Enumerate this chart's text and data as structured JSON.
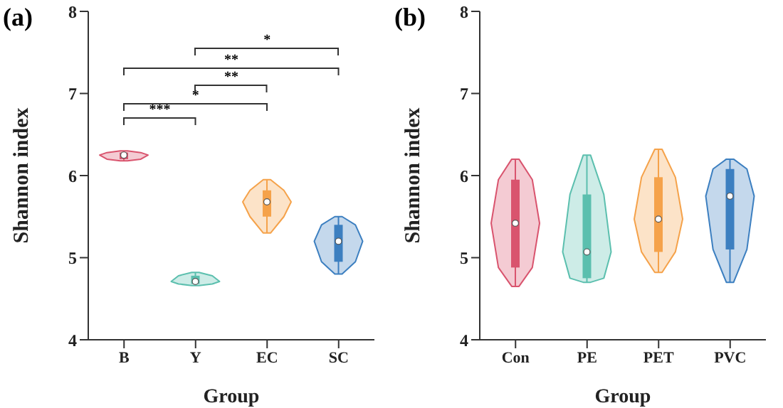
{
  "chart_data": [
    {
      "type": "box",
      "title": "(a)",
      "xlabel": "Group",
      "ylabel": "Shannon index",
      "categories": [
        "B",
        "Y",
        "EC",
        "SC"
      ],
      "boxes": [
        {
          "low": 6.18,
          "q1": 6.2,
          "median": 6.25,
          "q3": 6.28,
          "high": 6.3
        },
        {
          "low": 4.66,
          "q1": 4.68,
          "median": 4.71,
          "q3": 4.78,
          "high": 4.82
        },
        {
          "low": 5.3,
          "q1": 5.5,
          "median": 5.68,
          "q3": 5.82,
          "high": 5.95
        },
        {
          "low": 4.8,
          "q1": 4.95,
          "median": 5.2,
          "q3": 5.4,
          "high": 5.5
        }
      ],
      "colors": [
        "#d9546e",
        "#5bbfae",
        "#f5a24a",
        "#3c7fc0"
      ],
      "ylim": [
        4,
        8
      ],
      "yticks": [
        4,
        5,
        6,
        7,
        8
      ],
      "grid": false,
      "annotations": [
        "***",
        "*",
        "**",
        "**",
        "*"
      ]
    },
    {
      "type": "box",
      "title": "(b)",
      "xlabel": "Group",
      "ylabel": "Shannon index",
      "categories": [
        "Con",
        "PE",
        "PET",
        "PVC"
      ],
      "boxes": [
        {
          "low": 4.65,
          "q1": 4.88,
          "median": 5.42,
          "q3": 5.95,
          "high": 6.2
        },
        {
          "low": 4.7,
          "q1": 4.75,
          "median": 5.07,
          "q3": 5.77,
          "high": 6.25
        },
        {
          "low": 4.82,
          "q1": 5.07,
          "median": 5.47,
          "q3": 5.98,
          "high": 6.32
        },
        {
          "low": 4.7,
          "q1": 5.1,
          "median": 5.75,
          "q3": 6.08,
          "high": 6.2
        }
      ],
      "colors": [
        "#d9546e",
        "#5bbfae",
        "#f5a24a",
        "#3c7fc0"
      ],
      "ylim": [
        4,
        8
      ],
      "yticks": [
        4,
        5,
        6,
        7,
        8
      ],
      "grid": false
    }
  ]
}
